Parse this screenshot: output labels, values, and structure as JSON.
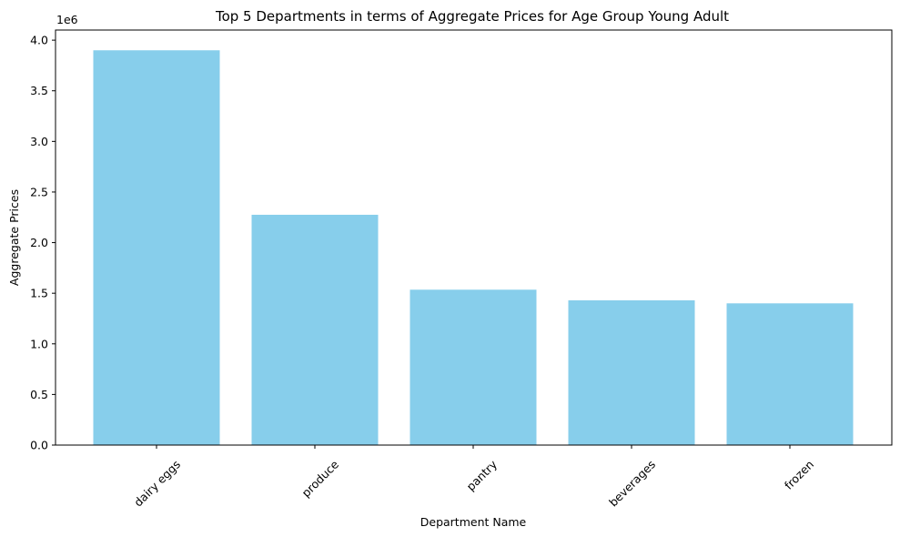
{
  "chart_data": {
    "type": "bar",
    "title": "Top 5 Departments in terms of Aggregate Prices for Age Group Young Adult",
    "xlabel": "Department Name",
    "ylabel": "Aggregate Prices",
    "categories": [
      "dairy eggs",
      "produce",
      "pantry",
      "beverages",
      "frozen"
    ],
    "values": [
      3900000,
      2275000,
      1535000,
      1430000,
      1400000
    ],
    "ylim": [
      0,
      4100000
    ],
    "yticks": [
      0,
      0.5,
      1.0,
      1.5,
      2.0,
      2.5,
      3.0,
      3.5,
      4.0
    ],
    "ytick_labels": [
      "0.0",
      "0.5",
      "1.0",
      "1.5",
      "2.0",
      "2.5",
      "3.0",
      "3.5",
      "4.0"
    ],
    "y_offset_label": "1e6",
    "bar_color": "#87ceeb",
    "grid": false,
    "legend": "none"
  }
}
